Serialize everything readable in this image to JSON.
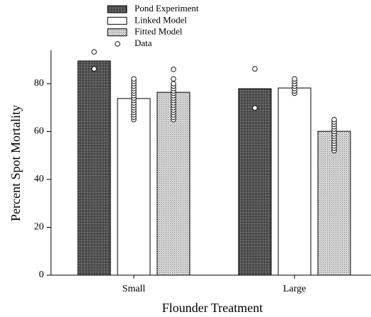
{
  "chart_data": {
    "type": "bar",
    "categories": [
      "Small",
      "Large"
    ],
    "xlabel": "Flounder Treatment",
    "ylabel": "Percent Spot Mortality",
    "ylim": [
      0,
      94
    ],
    "yticks": [
      0,
      20,
      40,
      60,
      80
    ],
    "legend": "top",
    "series": [
      {
        "name": "Pond Experiment",
        "fill": "crosshatch",
        "color": "#555555",
        "values": [
          89.5,
          77.9
        ]
      },
      {
        "name": "Linked Model",
        "fill": "solid",
        "color": "#ffffff",
        "values": [
          73.8,
          78.2
        ]
      },
      {
        "name": "Fitted Model",
        "fill": "stipple",
        "color": "#bbbbbb",
        "values": [
          76.4,
          60.1
        ]
      },
      {
        "name": "Data",
        "type": "scatter",
        "color": "#ffffff",
        "values": [
          [
            [
              93.3,
              86.2
            ],
            [
              65,
              66,
              67,
              68,
              69,
              70,
              71,
              72,
              73,
              74,
              75,
              76,
              77,
              78,
              79,
              80,
              81,
              82
            ],
            [
              65,
              66,
              67,
              68,
              69,
              70,
              71,
              72,
              73,
              74,
              75,
              76,
              77,
              78,
              79,
              80,
              82,
              86
            ]
          ],
          [
            [
              86.2,
              69.9
            ],
            [
              76,
              77,
              78,
              79,
              80,
              81,
              82
            ],
            [
              52,
              53,
              54,
              55,
              56,
              57,
              58,
              59,
              60,
              61,
              62,
              63,
              64,
              65
            ]
          ]
        ]
      }
    ]
  }
}
